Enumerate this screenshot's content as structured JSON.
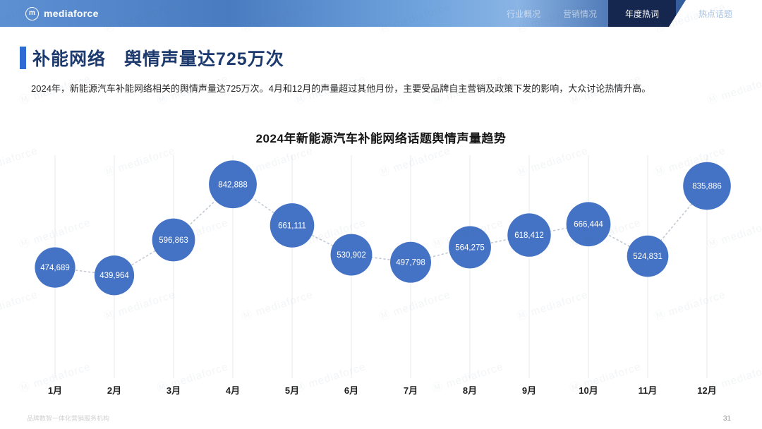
{
  "header": {
    "logo_text": "mediaforce",
    "nav": [
      {
        "label": "行业概况",
        "active": false
      },
      {
        "label": "营销情况",
        "active": false
      },
      {
        "label": "年度热词",
        "active": true
      },
      {
        "label": "热点话题",
        "active": false
      }
    ]
  },
  "page": {
    "title": "补能网络　舆情声量达725万次",
    "description": "2024年，新能源汽车补能网络相关的舆情声量达725万次。4月和12月的声量超过其他月份，主要受品牌自主营销及政策下发的影响，大众讨论热情升高。",
    "footer_text": "品牌数智一体化营销服务机构",
    "page_number": "31",
    "watermark": "mediaforce"
  },
  "chart_data": {
    "type": "line",
    "variant": "bubble-line",
    "title": "2024年新能源汽车补能网络话题舆情声量趋势",
    "categories": [
      "1月",
      "2月",
      "3月",
      "4月",
      "5月",
      "6月",
      "7月",
      "8月",
      "9月",
      "10月",
      "11月",
      "12月"
    ],
    "values": [
      474689,
      439964,
      596863,
      842888,
      661111,
      530902,
      497798,
      564275,
      618412,
      666444,
      524831,
      835886
    ],
    "xlabel": "",
    "ylabel": "",
    "ylim": [
      400000,
      900000
    ],
    "grid": "vertical",
    "legend": false,
    "colors": {
      "bubble": "#4472C4",
      "connector": "#C3C9D4",
      "gridline": "#E6E8EE",
      "value_label": "#FFFFFF",
      "month_label": "#1F1F1F"
    }
  }
}
